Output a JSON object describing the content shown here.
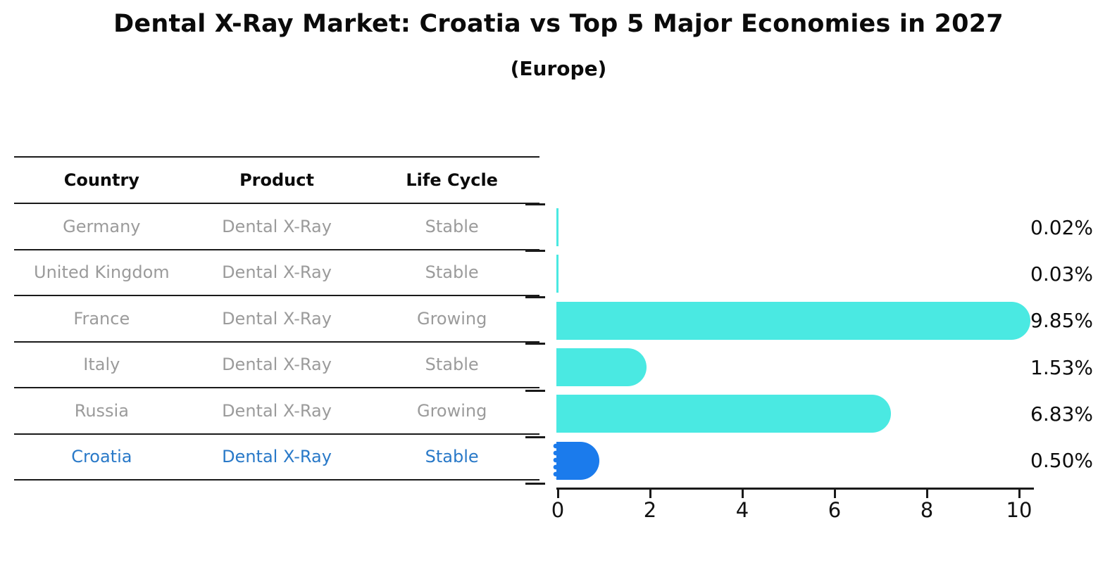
{
  "title": "Dental X-Ray Market: Croatia vs Top 5 Major Economies in 2027",
  "subtitle": "(Europe)",
  "table": {
    "headers": [
      "Country",
      "Product",
      "Life Cycle"
    ],
    "rows": [
      {
        "country": "Germany",
        "product": "Dental X-Ray",
        "life_cycle": "Stable",
        "highlighted": false
      },
      {
        "country": "United Kingdom",
        "product": "Dental X-Ray",
        "life_cycle": "Stable",
        "highlighted": false
      },
      {
        "country": "France",
        "product": "Dental X-Ray",
        "life_cycle": "Growing",
        "highlighted": false
      },
      {
        "country": "Italy",
        "product": "Dental X-Ray",
        "life_cycle": "Stable",
        "highlighted": false
      },
      {
        "country": "Russia",
        "product": "Dental X-Ray",
        "life_cycle": "Growing",
        "highlighted": false
      },
      {
        "country": "Croatia",
        "product": "Dental X-Ray",
        "life_cycle": "Stable",
        "highlighted": true
      }
    ]
  },
  "chart_data": {
    "type": "bar",
    "orientation": "horizontal",
    "title": "Dental X-Ray Market: Croatia vs Top 5 Major Economies in 2027",
    "subtitle": "(Europe)",
    "categories": [
      "Germany",
      "United Kingdom",
      "France",
      "Italy",
      "Russia",
      "Croatia"
    ],
    "values": [
      0.02,
      0.03,
      9.85,
      1.53,
      6.83,
      0.5
    ],
    "value_labels": [
      "0.02%",
      "0.03%",
      "9.85%",
      "1.53%",
      "6.83%",
      "0.50%"
    ],
    "xlabel": "",
    "ylabel": "",
    "xlim": [
      0,
      10.35
    ],
    "x_ticks": [
      0,
      2,
      4,
      6,
      8,
      10
    ],
    "grid": false,
    "legend": "none",
    "bar_color": "#4ae9e2",
    "highlight_color": "#1b7bec",
    "highlight_index": 5,
    "highlight_text_color": "#2979c8",
    "text_color_muted": "#9b9b9b",
    "axis_color": "#1a1a1a"
  }
}
